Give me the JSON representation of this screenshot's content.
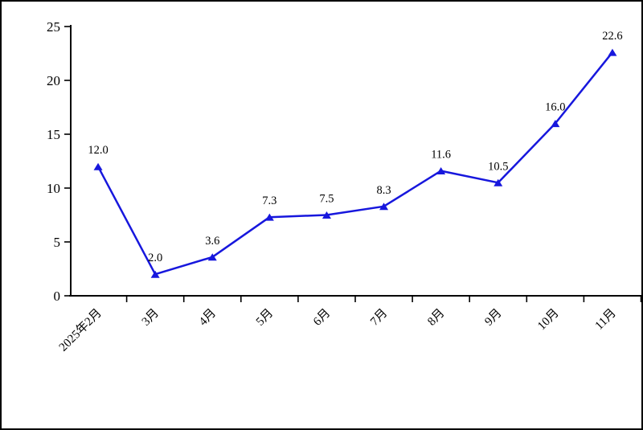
{
  "chart_data": {
    "type": "line",
    "title": "",
    "xlabel": "",
    "ylabel": "",
    "categories": [
      "2025年2月",
      "3月",
      "4月",
      "5月",
      "6月",
      "7月",
      "8月",
      "9月",
      "10月",
      "11月"
    ],
    "series": [
      {
        "name": "series-1",
        "values": [
          12.0,
          2.0,
          3.6,
          7.3,
          7.5,
          8.3,
          11.6,
          10.5,
          16.0,
          22.6
        ],
        "data_labels": [
          "12.0",
          "2.0",
          "3.6",
          "7.3",
          "7.5",
          "8.3",
          "11.6",
          "10.5",
          "16.0",
          "22.6"
        ]
      }
    ],
    "ylim": [
      0,
      25
    ],
    "yticks": [
      0,
      5,
      10,
      15,
      20,
      25
    ],
    "grid": false,
    "legend_position": "none",
    "marker": "triangle",
    "colors": {
      "line": "#1717dd",
      "marker": "#1717dd",
      "axis": "#000000",
      "text": "#000000",
      "background": "#ffffff",
      "frame_border": "#000000"
    }
  }
}
